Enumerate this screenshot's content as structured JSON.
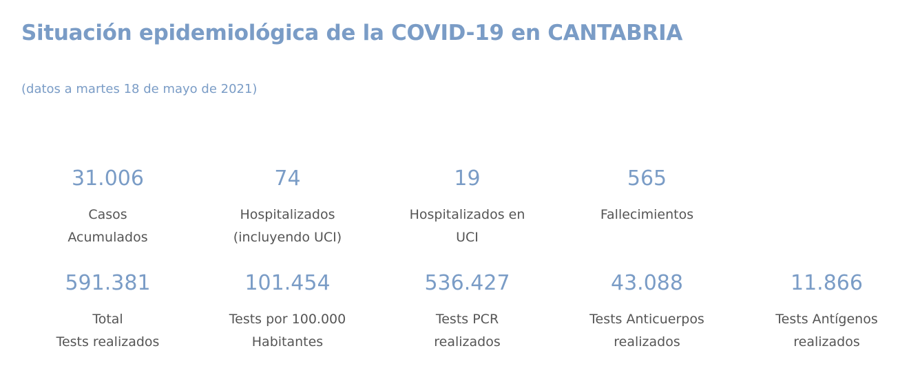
{
  "header": {
    "title": "Situación epidemiológica de la COVID-19 en CANTABRIA",
    "subtitle": "(datos a martes 18 de mayo de 2021)"
  },
  "row1": [
    {
      "value": "31.006",
      "label": "Casos Acumulados"
    },
    {
      "value": "74",
      "label": "Hospitalizados\n(incluyendo UCI)"
    },
    {
      "value": "19",
      "label": "Hospitalizados en\nUCI"
    },
    {
      "value": "565",
      "label": "Fallecimientos"
    }
  ],
  "row2": [
    {
      "value": "591.381",
      "label": "Total\nTests realizados"
    },
    {
      "value": "101.454",
      "label": "Tests por 100.000\nHabitantes"
    },
    {
      "value": "536.427",
      "label": "Tests PCR\nrealizados"
    },
    {
      "value": "43.088",
      "label": "Tests Anticuerpos\nrealizados"
    },
    {
      "value": "11.866",
      "label": "Tests Antígenos\nrealizados"
    }
  ],
  "colors": {
    "accent": "#7a9cc6",
    "label": "#555555"
  }
}
